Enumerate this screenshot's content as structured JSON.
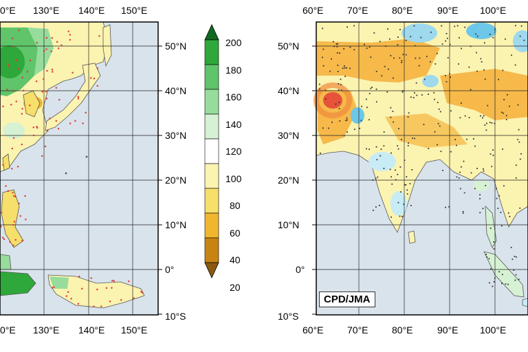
{
  "left_map": {
    "top_lon_labels": [
      "0°E",
      "130°E",
      "140°E",
      "150°E"
    ],
    "bottom_lon_labels": [
      "0°E",
      "130°E",
      "140°E",
      "150°E"
    ],
    "lat_labels": [
      "50°N",
      "40°N",
      "30°N",
      "20°N",
      "10°N",
      "0°",
      "10°S"
    ]
  },
  "colorbar": {
    "ticks": [
      "200",
      "180",
      "160",
      "140",
      "120",
      "100",
      "80",
      "60",
      "40",
      "20"
    ],
    "colors": [
      "#1a7f2a",
      "#2ea83a",
      "#5fc46a",
      "#97dc9c",
      "#d6f1d3",
      "#ffffff",
      "#fbf3b0",
      "#f6df6a",
      "#f0b62e",
      "#c88412",
      "#9a6310"
    ],
    "lower_arrow_color": "#8a5a10",
    "upper_arrow_color": "#106a22"
  },
  "right_map": {
    "lon_labels": [
      "60°E",
      "70°E",
      "80°E",
      "90°E",
      "100°E"
    ],
    "lat_labels": [
      "50°N",
      "40°N",
      "30°N",
      "20°N",
      "10°N",
      "0°",
      "10°S"
    ],
    "source_label": "CPD/JMA"
  },
  "colors": {
    "ocean": "#d9e3ec",
    "grid": "#222222",
    "station_left": "#e03a3a",
    "station_right": "#333333"
  }
}
